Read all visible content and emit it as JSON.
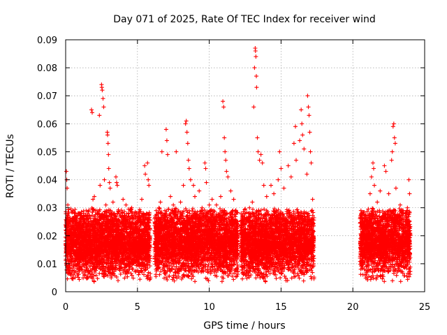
{
  "chart_data": {
    "type": "scatter",
    "title": "Day 071 of 2025, Rate Of TEC Index for receiver wind",
    "xlabel": "GPS time / hours",
    "ylabel": "ROTI / TECUs",
    "xlim": [
      0,
      25
    ],
    "ylim": [
      0,
      0.09
    ],
    "xticks": [
      "0",
      "5",
      "10",
      "15",
      "20",
      "25"
    ],
    "yticks": [
      "0",
      "0.01",
      "0.02",
      "0.03",
      "0.04",
      "0.05",
      "0.06",
      "0.07",
      "0.08",
      "0.09"
    ],
    "grid": true,
    "marker": "plus",
    "color": "#ff0000",
    "coverage_hours": [
      [
        0.0,
        5.9
      ],
      [
        6.2,
        12.0
      ],
      [
        12.2,
        17.3
      ],
      [
        20.5,
        24.0
      ]
    ],
    "typical_range": [
      0.003,
      0.03
    ],
    "points": [
      [
        0.05,
        0.043
      ],
      [
        0.08,
        0.04
      ],
      [
        0.1,
        0.037
      ],
      [
        0.15,
        0.031
      ],
      [
        0.2,
        0.028
      ],
      [
        0.3,
        0.025
      ],
      [
        0.4,
        0.022
      ],
      [
        0.5,
        0.029
      ],
      [
        1.0,
        0.024
      ],
      [
        1.2,
        0.026
      ],
      [
        1.5,
        0.022
      ],
      [
        1.8,
        0.065
      ],
      [
        1.85,
        0.064
      ],
      [
        1.9,
        0.033
      ],
      [
        2.0,
        0.034
      ],
      [
        2.2,
        0.026
      ],
      [
        2.35,
        0.063
      ],
      [
        2.4,
        0.038
      ],
      [
        2.5,
        0.074
      ],
      [
        2.52,
        0.073
      ],
      [
        2.55,
        0.072
      ],
      [
        2.6,
        0.069
      ],
      [
        2.65,
        0.066
      ],
      [
        2.7,
        0.04
      ],
      [
        2.8,
        0.031
      ],
      [
        2.9,
        0.057
      ],
      [
        2.92,
        0.056
      ],
      [
        2.95,
        0.053
      ],
      [
        2.98,
        0.049
      ],
      [
        3.0,
        0.044
      ],
      [
        3.05,
        0.039
      ],
      [
        3.1,
        0.037
      ],
      [
        3.3,
        0.032
      ],
      [
        3.4,
        0.028
      ],
      [
        3.5,
        0.041
      ],
      [
        3.55,
        0.039
      ],
      [
        3.6,
        0.038
      ],
      [
        3.8,
        0.027
      ],
      [
        4.0,
        0.033
      ],
      [
        4.2,
        0.031
      ],
      [
        4.5,
        0.029
      ],
      [
        4.6,
        0.03
      ],
      [
        4.8,
        0.028
      ],
      [
        5.0,
        0.027
      ],
      [
        5.3,
        0.033
      ],
      [
        5.5,
        0.045
      ],
      [
        5.55,
        0.042
      ],
      [
        5.7,
        0.046
      ],
      [
        5.75,
        0.04
      ],
      [
        5.8,
        0.038
      ],
      [
        6.5,
        0.03
      ],
      [
        6.6,
        0.032
      ],
      [
        6.7,
        0.05
      ],
      [
        7.0,
        0.058
      ],
      [
        7.05,
        0.054
      ],
      [
        7.1,
        0.049
      ],
      [
        7.3,
        0.034
      ],
      [
        7.5,
        0.031
      ],
      [
        7.7,
        0.05
      ],
      [
        8.0,
        0.032
      ],
      [
        8.2,
        0.038
      ],
      [
        8.35,
        0.06
      ],
      [
        8.4,
        0.061
      ],
      [
        8.45,
        0.057
      ],
      [
        8.5,
        0.053
      ],
      [
        8.55,
        0.047
      ],
      [
        8.6,
        0.044
      ],
      [
        8.7,
        0.04
      ],
      [
        8.9,
        0.038
      ],
      [
        9.0,
        0.034
      ],
      [
        9.3,
        0.036
      ],
      [
        9.5,
        0.03
      ],
      [
        9.7,
        0.046
      ],
      [
        9.75,
        0.044
      ],
      [
        9.8,
        0.039
      ],
      [
        10.0,
        0.031
      ],
      [
        10.2,
        0.033
      ],
      [
        10.5,
        0.031
      ],
      [
        10.8,
        0.034
      ],
      [
        10.95,
        0.068
      ],
      [
        11.0,
        0.066
      ],
      [
        11.05,
        0.055
      ],
      [
        11.1,
        0.05
      ],
      [
        11.15,
        0.047
      ],
      [
        11.2,
        0.043
      ],
      [
        11.3,
        0.041
      ],
      [
        11.5,
        0.036
      ],
      [
        11.7,
        0.033
      ],
      [
        12.5,
        0.028
      ],
      [
        12.8,
        0.03
      ],
      [
        13.0,
        0.032
      ],
      [
        13.1,
        0.066
      ],
      [
        13.15,
        0.08
      ],
      [
        13.2,
        0.087
      ],
      [
        13.22,
        0.086
      ],
      [
        13.25,
        0.084
      ],
      [
        13.28,
        0.077
      ],
      [
        13.3,
        0.073
      ],
      [
        13.35,
        0.055
      ],
      [
        13.4,
        0.05
      ],
      [
        13.5,
        0.047
      ],
      [
        13.6,
        0.049
      ],
      [
        13.7,
        0.046
      ],
      [
        13.8,
        0.038
      ],
      [
        14.0,
        0.034
      ],
      [
        14.3,
        0.038
      ],
      [
        14.5,
        0.035
      ],
      [
        14.8,
        0.04
      ],
      [
        14.9,
        0.05
      ],
      [
        15.0,
        0.044
      ],
      [
        15.2,
        0.037
      ],
      [
        15.5,
        0.045
      ],
      [
        15.7,
        0.041
      ],
      [
        15.9,
        0.053
      ],
      [
        16.0,
        0.059
      ],
      [
        16.05,
        0.047
      ],
      [
        16.3,
        0.054
      ],
      [
        16.4,
        0.065
      ],
      [
        16.45,
        0.06
      ],
      [
        16.5,
        0.056
      ],
      [
        16.6,
        0.051
      ],
      [
        16.8,
        0.042
      ],
      [
        16.85,
        0.07
      ],
      [
        16.9,
        0.066
      ],
      [
        16.95,
        0.063
      ],
      [
        17.0,
        0.057
      ],
      [
        17.05,
        0.05
      ],
      [
        17.1,
        0.046
      ],
      [
        17.2,
        0.033
      ],
      [
        20.6,
        0.028
      ],
      [
        20.65,
        0.02
      ],
      [
        20.7,
        0.017
      ],
      [
        20.75,
        0.015
      ],
      [
        20.8,
        0.008
      ],
      [
        20.85,
        0.006
      ],
      [
        21.2,
        0.035
      ],
      [
        21.3,
        0.041
      ],
      [
        21.4,
        0.046
      ],
      [
        21.45,
        0.044
      ],
      [
        21.5,
        0.038
      ],
      [
        21.7,
        0.032
      ],
      [
        21.9,
        0.036
      ],
      [
        22.2,
        0.045
      ],
      [
        22.3,
        0.043
      ],
      [
        22.5,
        0.035
      ],
      [
        22.7,
        0.047
      ],
      [
        22.75,
        0.05
      ],
      [
        22.8,
        0.059
      ],
      [
        22.85,
        0.06
      ],
      [
        22.9,
        0.055
      ],
      [
        22.95,
        0.053
      ],
      [
        23.0,
        0.037
      ],
      [
        23.3,
        0.031
      ],
      [
        23.5,
        0.029
      ],
      [
        23.8,
        0.03
      ],
      [
        23.9,
        0.04
      ],
      [
        23.95,
        0.035
      ]
    ]
  }
}
